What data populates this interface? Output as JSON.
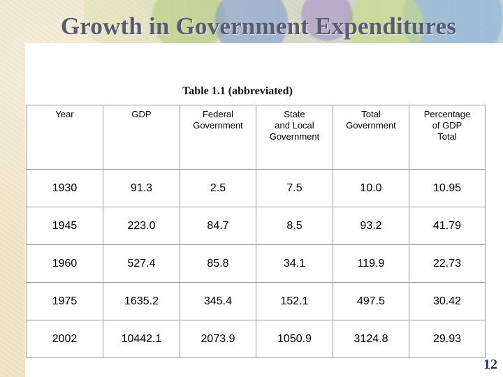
{
  "slide": {
    "title": "Growth in Government Expenditures",
    "caption": "Table 1.1 (abbreviated)",
    "page_number": "12"
  },
  "table": {
    "headers": [
      [
        "Year"
      ],
      [
        "GDP"
      ],
      [
        "Federal",
        "Government"
      ],
      [
        "State",
        "and Local",
        "Government"
      ],
      [
        "Total",
        "Government"
      ],
      [
        "Percentage",
        "of GDP",
        "Total"
      ]
    ],
    "rows": [
      [
        "1930",
        "91.3",
        "2.5",
        "7.5",
        "10.0",
        "10.95"
      ],
      [
        "1945",
        "223.0",
        "84.7",
        "8.5",
        "93.2",
        "41.79"
      ],
      [
        "1960",
        "527.4",
        "85.8",
        "34.1",
        "119.9",
        "22.73"
      ],
      [
        "1975",
        "1635.2",
        "345.4",
        "152.1",
        "497.5",
        "30.42"
      ],
      [
        "2002",
        "10442.1",
        "2073.9",
        "1050.9",
        "3124.8",
        "29.93"
      ]
    ]
  }
}
